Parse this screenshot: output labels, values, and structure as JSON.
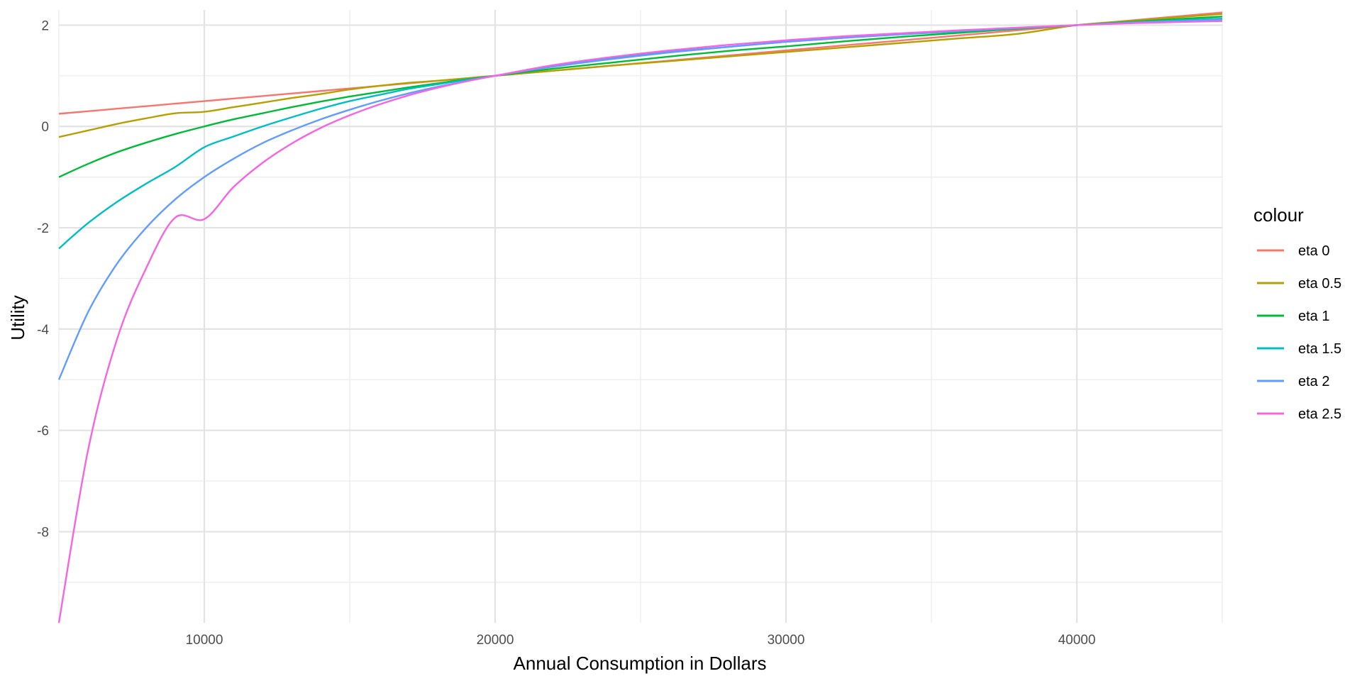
{
  "chart_data": {
    "type": "line",
    "xlabel": "Annual Consumption in Dollars",
    "ylabel": "Utility",
    "xlim": [
      5000,
      45000
    ],
    "ylim": [
      -9.8,
      2.3
    ],
    "x_ticks": [
      10000,
      20000,
      30000,
      40000
    ],
    "y_ticks": [
      2,
      0,
      -2,
      -4,
      -6,
      -8
    ],
    "x_tick_labels": [
      "10000",
      "20000",
      "30000",
      "40000"
    ],
    "y_tick_labels": [
      "2",
      "0",
      "-2",
      "-4",
      "-6",
      "-8"
    ],
    "grid": true,
    "legend": {
      "title": "colour",
      "position": "right"
    },
    "x": [
      5000,
      6000,
      7000,
      8000,
      9000,
      10000,
      11000,
      12000,
      13000,
      14000,
      15000,
      16000,
      17000,
      18000,
      19000,
      20000,
      22000,
      24000,
      26000,
      28000,
      30000,
      32000,
      34000,
      36000,
      38000,
      40000,
      42000,
      45000
    ],
    "series": [
      {
        "name": "eta 0",
        "color": "#F8766D",
        "values": [
          0.25,
          0.3,
          0.35,
          0.4,
          0.45,
          0.5,
          0.55,
          0.6,
          0.65,
          0.7,
          0.75,
          0.8,
          0.85,
          0.9,
          0.95,
          1.0,
          1.1,
          1.2,
          1.3,
          1.4,
          1.5,
          1.6,
          1.7,
          1.8,
          1.9,
          2.0,
          2.1,
          2.25
        ]
      },
      {
        "name": "eta 0.5",
        "color": "#B79F00",
        "values": [
          -0.21,
          -0.08,
          0.05,
          0.16,
          0.26,
          0.29,
          0.38,
          0.47,
          0.56,
          0.64,
          0.73,
          0.8,
          0.86,
          0.9,
          0.95,
          1.0,
          1.1,
          1.2,
          1.29,
          1.38,
          1.47,
          1.56,
          1.65,
          1.74,
          1.83,
          2.0,
          2.09,
          2.22
        ]
      },
      {
        "name": "eta 1",
        "color": "#00BA38",
        "values": [
          -1.0,
          -0.74,
          -0.51,
          -0.32,
          -0.15,
          0.0,
          0.14,
          0.26,
          0.38,
          0.49,
          0.59,
          0.68,
          0.77,
          0.85,
          0.93,
          1.0,
          1.14,
          1.26,
          1.38,
          1.49,
          1.58,
          1.68,
          1.77,
          1.85,
          1.93,
          2.0,
          2.07,
          2.17
        ]
      },
      {
        "name": "eta 1.5",
        "color": "#00BFC4",
        "values": [
          -2.41,
          -1.91,
          -1.49,
          -1.13,
          -0.8,
          -0.41,
          -0.2,
          0.0,
          0.18,
          0.35,
          0.5,
          0.62,
          0.74,
          0.83,
          0.92,
          1.0,
          1.19,
          1.34,
          1.47,
          1.57,
          1.67,
          1.75,
          1.82,
          1.88,
          1.94,
          2.0,
          2.06,
          2.13
        ]
      },
      {
        "name": "eta 2",
        "color": "#619CFF",
        "values": [
          -5.0,
          -3.67,
          -2.71,
          -2.0,
          -1.44,
          -1.0,
          -0.64,
          -0.33,
          -0.08,
          0.14,
          0.33,
          0.5,
          0.65,
          0.78,
          0.89,
          1.0,
          1.18,
          1.33,
          1.46,
          1.57,
          1.67,
          1.75,
          1.82,
          1.89,
          1.95,
          2.0,
          2.05,
          2.11
        ]
      },
      {
        "name": "eta 2.5",
        "color": "#F564E3",
        "values": [
          -9.8,
          -6.4,
          -4.2,
          -2.8,
          -1.8,
          -1.83,
          -1.2,
          -0.72,
          -0.34,
          -0.03,
          0.22,
          0.43,
          0.61,
          0.76,
          0.89,
          1.0,
          1.21,
          1.37,
          1.5,
          1.61,
          1.7,
          1.78,
          1.84,
          1.9,
          1.95,
          2.0,
          2.04,
          2.08
        ]
      }
    ]
  }
}
